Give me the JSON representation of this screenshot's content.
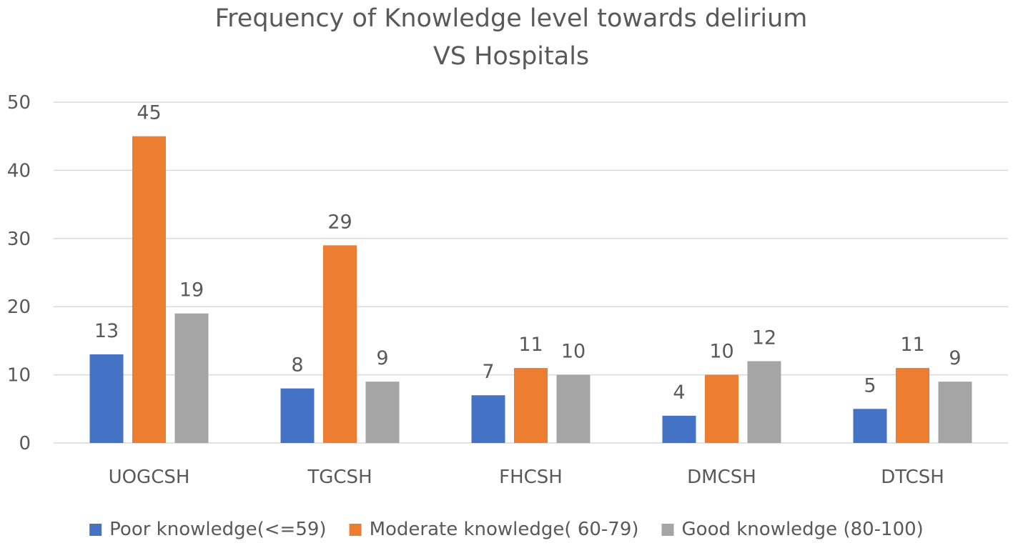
{
  "chart_data": {
    "type": "bar",
    "title_lines": [
      "Frequency of Knowledge level towards delirium",
      "VS  Hospitals"
    ],
    "title": "Frequency of Knowledge level towards delirium VS  Hospitals",
    "xlabel": "",
    "ylabel": "",
    "ylim": [
      0,
      50
    ],
    "yticks": [
      "0",
      "10",
      "20",
      "30",
      "40",
      "50"
    ],
    "grid": true,
    "legend_position": "bottom",
    "categories": [
      "UOGCSH",
      "TGCSH",
      "FHCSH",
      "DMCSH",
      "DTCSH"
    ],
    "series": [
      {
        "name": "Poor knowledge(<=59)",
        "color": "#4472c4",
        "values": [
          13,
          8,
          7,
          4,
          5
        ]
      },
      {
        "name": "Moderate knowledge( 60-79)",
        "color": "#ed7d31",
        "values": [
          45,
          29,
          11,
          10,
          11
        ]
      },
      {
        "name": "Good knowledge (80-100)",
        "color": "#a5a5a5",
        "values": [
          19,
          9,
          10,
          12,
          9
        ]
      }
    ]
  }
}
